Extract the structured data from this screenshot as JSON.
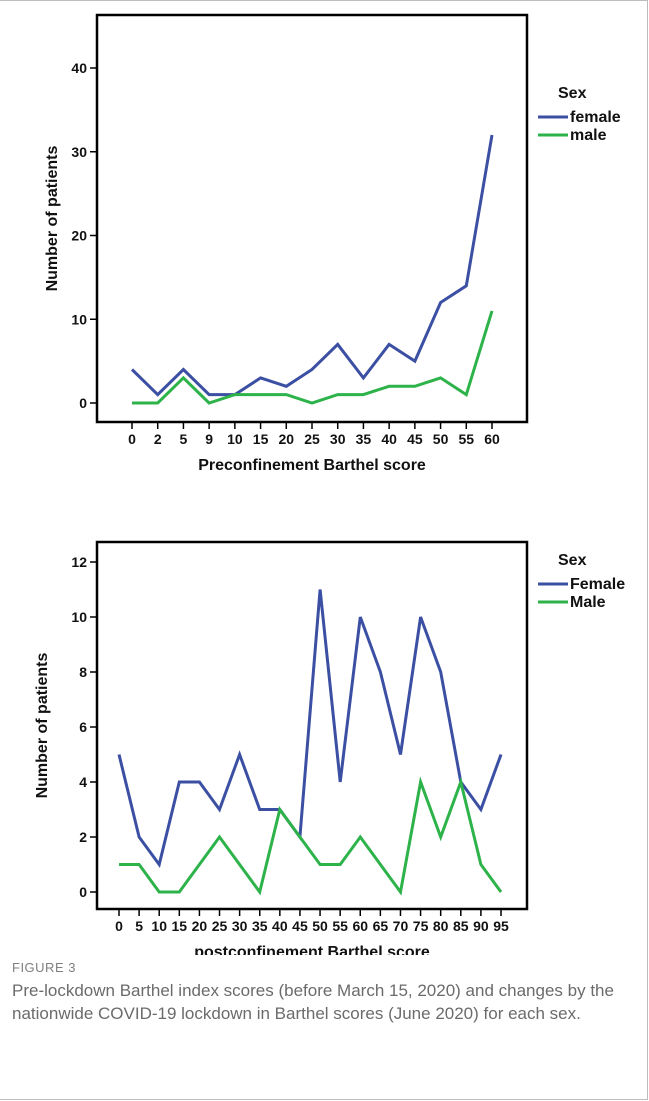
{
  "chart_data": [
    {
      "type": "line",
      "categories": [
        "0",
        "2",
        "5",
        "9",
        "10",
        "15",
        "20",
        "25",
        "30",
        "35",
        "40",
        "45",
        "50",
        "55",
        "60"
      ],
      "series": [
        {
          "name": "female",
          "values": [
            4,
            1,
            4,
            1,
            1,
            3,
            2,
            4,
            7,
            3,
            7,
            5,
            12,
            14,
            32
          ],
          "color": "#3b4fa3"
        },
        {
          "name": "male",
          "values": [
            0,
            0,
            3,
            0,
            1,
            1,
            1,
            0,
            1,
            1,
            2,
            2,
            3,
            1,
            11
          ],
          "color": "#2db34a"
        }
      ],
      "title": "",
      "xlabel": "Preconfinement Barthel score",
      "ylabel": "Number of patients",
      "ylim": [
        0,
        40
      ],
      "yticks": [
        0,
        10,
        20,
        30,
        40
      ],
      "legend_title": "Sex",
      "legend_position": "right",
      "grid": false
    },
    {
      "type": "line",
      "categories": [
        "0",
        "5",
        "10",
        "15",
        "20",
        "25",
        "30",
        "35",
        "40",
        "45",
        "50",
        "55",
        "60",
        "65",
        "70",
        "75",
        "80",
        "85",
        "90",
        "95"
      ],
      "series": [
        {
          "name": "Female",
          "values": [
            5,
            2,
            1,
            4,
            4,
            3,
            5,
            3,
            3,
            2,
            11,
            4,
            10,
            8,
            5,
            10,
            8,
            4,
            3,
            5
          ],
          "color": "#3b4fa3"
        },
        {
          "name": "Male",
          "values": [
            1,
            1,
            0,
            0,
            1,
            2,
            1,
            0,
            3,
            2,
            1,
            1,
            2,
            1,
            0,
            4,
            2,
            4,
            1,
            0
          ],
          "color": "#2db34a"
        }
      ],
      "title": "",
      "xlabel": "postconfinement Barthel score",
      "ylabel": "Number of patients",
      "ylim": [
        0,
        12
      ],
      "yticks": [
        0,
        2,
        4,
        6,
        8,
        10,
        12
      ],
      "legend_title": "Sex",
      "legend_position": "right",
      "grid": false
    }
  ],
  "caption": {
    "label": "FIGURE 3",
    "text": "Pre-lockdown Barthel index scores (before March 15, 2020) and changes by the nationwide COVID-19 lockdown in Barthel scores (June 2020) for each sex."
  }
}
